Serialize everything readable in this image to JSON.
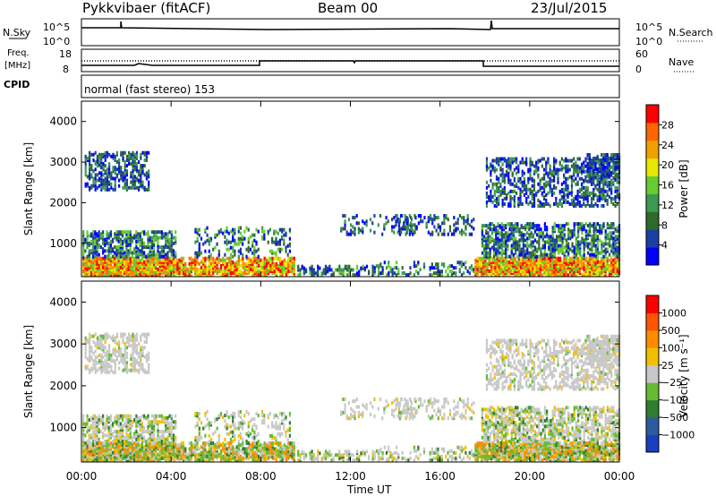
{
  "header": {
    "station": "Pykkvibaer (fitACF)",
    "beam": "Beam 00",
    "date": "23/Jul/2015"
  },
  "top_panels": {
    "nsky_label": "N.Sky",
    "nsky_ticks": [
      "10^5",
      "10^0"
    ],
    "nsearch_label": "N.Search",
    "nsearch_ticks": [
      "10^5",
      "10^0"
    ],
    "freq_label_1": "Freq.",
    "freq_label_2": "[MHz]",
    "freq_ticks": [
      "18",
      "8"
    ],
    "nave_label": "Nave",
    "nave_ticks": [
      "60",
      "0"
    ],
    "cpid_label": "CPID",
    "cpid_text": "normal (fast stereo) 153"
  },
  "chart_data": [
    {
      "type": "heatmap",
      "name": "power",
      "ylabel": "Slant Range [km]",
      "ylim": [
        180,
        4500
      ],
      "yticks": [
        "4000",
        "3000",
        "2000",
        "1000"
      ],
      "xlim": [
        0,
        24
      ],
      "colorbar_label": "Power [dB]",
      "colorbar_ticks": [
        "28",
        "24",
        "20",
        "16",
        "12",
        "8",
        "4"
      ],
      "colorscale": [
        "#0000ff",
        "#1a3fa0",
        "#2e6a2a",
        "#3c9a50",
        "#66cc33",
        "#e6e600",
        "#f0a000",
        "#ff6600",
        "#ff0000"
      ]
    },
    {
      "type": "heatmap",
      "name": "velocity",
      "ylabel": "Slant Range [km]",
      "ylim": [
        180,
        4500
      ],
      "yticks": [
        "4000",
        "3000",
        "2000",
        "1000"
      ],
      "xlim": [
        0,
        24
      ],
      "xlabel": "Time UT",
      "xticks": [
        "00:00",
        "04:00",
        "08:00",
        "12:00",
        "16:00",
        "20:00",
        "00:00"
      ],
      "colorbar_label": "Velocity [m s⁻¹]",
      "colorbar_ticks": [
        "1000",
        "500",
        "100",
        "25",
        "−25",
        "−100",
        "−500",
        "−1000"
      ],
      "colorscale": [
        "#1a3fbf",
        "#2e5aa0",
        "#2e7d32",
        "#66bb33",
        "#c8c8c8",
        "#f0c000",
        "#ff8c00",
        "#ff5500",
        "#ff0000"
      ]
    }
  ]
}
